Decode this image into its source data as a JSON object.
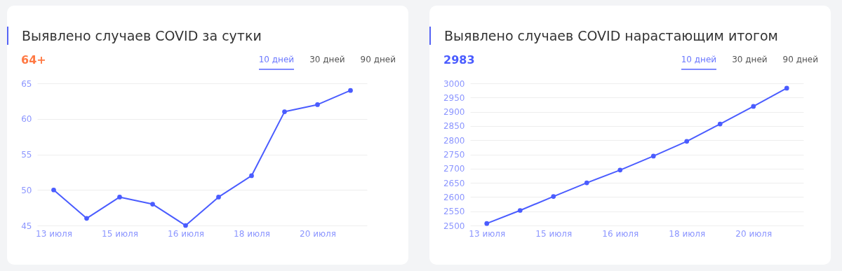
{
  "chart_data": [
    {
      "type": "line",
      "title": "Выявлено случаев COVID за сутки",
      "subtitle": "64+",
      "annotations": [
        "10 дней",
        "30 дней",
        "90 дней"
      ],
      "categories": [
        "13 июля",
        null,
        "15 июля",
        null,
        "16 июля",
        null,
        "18 июля",
        null,
        "20 июля",
        null
      ],
      "series": [
        {
          "color": "#4a5cff",
          "values": [
            50,
            46,
            49,
            48,
            45,
            49,
            52,
            61,
            62,
            64
          ]
        }
      ],
      "ylim": [
        45,
        65
      ],
      "yticks": [
        45,
        50,
        55,
        60,
        65
      ],
      "grid": "y",
      "marker": "circle"
    },
    {
      "type": "line",
      "title": "Выявлено случаев COVID нарастающим итогом",
      "subtitle": "2983",
      "annotations": [
        "10 дней",
        "30 дней",
        "90 дней"
      ],
      "categories": [
        "13 июля",
        null,
        "15 июля",
        null,
        "16 июля",
        null,
        "18 июля",
        null,
        "20 июля",
        null
      ],
      "series": [
        {
          "color": "#4a5cff",
          "values": [
            2507,
            2553,
            2602,
            2650,
            2695,
            2744,
            2796,
            2857,
            2919,
            2983
          ]
        }
      ],
      "ylim": [
        2500,
        3000
      ],
      "yticks": [
        2500,
        2550,
        2600,
        2650,
        2700,
        2750,
        2800,
        2850,
        2900,
        2950,
        3000
      ],
      "grid": "y",
      "marker": "circle"
    }
  ]
}
